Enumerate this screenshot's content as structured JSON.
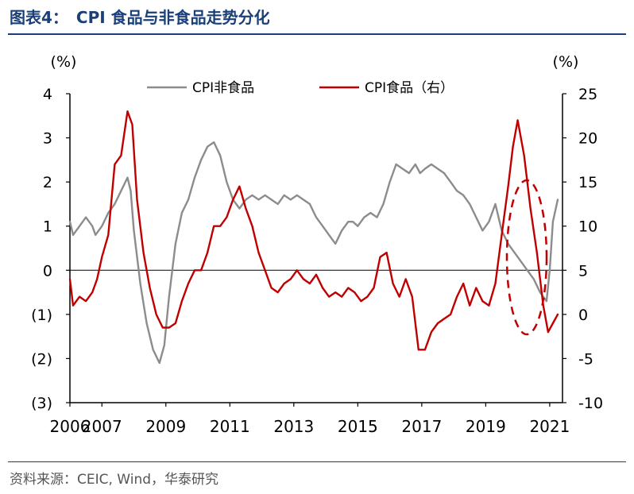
{
  "header": {
    "title": "图表4：　CPI 食品与非食品走势分化"
  },
  "source": {
    "text": "资料来源：CEIC, Wind，华泰研究"
  },
  "chart_data": {
    "type": "line",
    "title": "",
    "left_axis": {
      "unit_label": "(%)",
      "range": [
        -3,
        4
      ],
      "ticks": [
        4,
        3,
        2,
        1,
        0,
        -1,
        -2,
        -3
      ],
      "tick_labels": [
        "4",
        "3",
        "2",
        "1",
        "0",
        "(1)",
        "(2)",
        "(3)"
      ]
    },
    "right_axis": {
      "unit_label": "(%)",
      "range": [
        -10,
        25
      ],
      "ticks": [
        25,
        20,
        15,
        10,
        5,
        0,
        -5,
        -10
      ],
      "tick_labels": [
        "25",
        "20",
        "15",
        "10",
        "5",
        "0",
        "-5",
        "-10"
      ]
    },
    "x_axis": {
      "range": [
        2006.0,
        2021.4
      ],
      "ticks": [
        2006,
        2007,
        2009,
        2011,
        2013,
        2015,
        2017,
        2019,
        2021
      ],
      "tick_labels": [
        "2006",
        "2007",
        "2009",
        "2011",
        "2013",
        "2015",
        "2017",
        "2019",
        "2021"
      ]
    },
    "legend": {
      "placement": "top-center"
    },
    "series": [
      {
        "name": "CPI非食品",
        "axis": "left",
        "color": "#8c8c8c",
        "x": [
          2006.0,
          2006.1,
          2006.3,
          2006.5,
          2006.7,
          2006.8,
          2007.0,
          2007.2,
          2007.4,
          2007.6,
          2007.8,
          2007.9,
          2008.0,
          2008.2,
          2008.4,
          2008.6,
          2008.8,
          2008.95,
          2009.1,
          2009.3,
          2009.5,
          2009.7,
          2009.9,
          2010.1,
          2010.3,
          2010.5,
          2010.7,
          2010.9,
          2011.1,
          2011.3,
          2011.5,
          2011.7,
          2011.9,
          2012.1,
          2012.3,
          2012.5,
          2012.7,
          2012.9,
          2013.1,
          2013.3,
          2013.5,
          2013.7,
          2013.9,
          2014.1,
          2014.3,
          2014.5,
          2014.7,
          2014.85,
          2015.0,
          2015.2,
          2015.4,
          2015.6,
          2015.8,
          2016.0,
          2016.2,
          2016.4,
          2016.6,
          2016.8,
          2016.95,
          2017.1,
          2017.3,
          2017.5,
          2017.7,
          2017.9,
          2018.1,
          2018.3,
          2018.5,
          2018.7,
          2018.9,
          2019.1,
          2019.3,
          2019.5,
          2019.7,
          2019.9,
          2020.1,
          2020.3,
          2020.5,
          2020.7,
          2020.9,
          2021.0,
          2021.1,
          2021.25
        ],
        "y": [
          1.1,
          0.8,
          1.0,
          1.2,
          1.0,
          0.8,
          1.0,
          1.3,
          1.5,
          1.8,
          2.1,
          1.8,
          0.9,
          -0.3,
          -1.2,
          -1.8,
          -2.1,
          -1.7,
          -0.6,
          0.6,
          1.3,
          1.6,
          2.1,
          2.5,
          2.8,
          2.9,
          2.6,
          2.0,
          1.6,
          1.4,
          1.6,
          1.7,
          1.6,
          1.7,
          1.6,
          1.5,
          1.7,
          1.6,
          1.7,
          1.6,
          1.5,
          1.2,
          1.0,
          0.8,
          0.6,
          0.9,
          1.1,
          1.1,
          1.0,
          1.2,
          1.3,
          1.2,
          1.5,
          2.0,
          2.4,
          2.3,
          2.2,
          2.4,
          2.2,
          2.3,
          2.4,
          2.3,
          2.2,
          2.0,
          1.8,
          1.7,
          1.5,
          1.2,
          0.9,
          1.1,
          1.5,
          0.9,
          0.6,
          0.4,
          0.2,
          0.0,
          -0.2,
          -0.5,
          -0.7,
          0.0,
          1.1,
          1.6
        ]
      },
      {
        "name": "CPI食品（右）",
        "axis": "right",
        "color": "#c00000",
        "x": [
          2006.0,
          2006.1,
          2006.3,
          2006.5,
          2006.7,
          2006.85,
          2007.0,
          2007.2,
          2007.4,
          2007.6,
          2007.8,
          2007.95,
          2008.1,
          2008.3,
          2008.5,
          2008.7,
          2008.9,
          2009.1,
          2009.3,
          2009.5,
          2009.7,
          2009.9,
          2010.1,
          2010.3,
          2010.5,
          2010.7,
          2010.9,
          2011.1,
          2011.3,
          2011.5,
          2011.7,
          2011.9,
          2012.1,
          2012.3,
          2012.5,
          2012.7,
          2012.9,
          2013.1,
          2013.3,
          2013.5,
          2013.7,
          2013.9,
          2014.1,
          2014.3,
          2014.5,
          2014.7,
          2014.9,
          2015.1,
          2015.3,
          2015.5,
          2015.7,
          2015.9,
          2016.1,
          2016.3,
          2016.5,
          2016.7,
          2016.9,
          2017.1,
          2017.3,
          2017.5,
          2017.7,
          2017.9,
          2018.1,
          2018.3,
          2018.5,
          2018.7,
          2018.9,
          2019.1,
          2019.3,
          2019.5,
          2019.7,
          2019.85,
          2020.0,
          2020.2,
          2020.4,
          2020.6,
          2020.8,
          2020.95,
          2021.1,
          2021.25
        ],
        "y": [
          4.0,
          1.0,
          2.0,
          1.5,
          2.5,
          4.0,
          6.5,
          9.0,
          17.0,
          18.0,
          23.0,
          21.5,
          13.0,
          7.0,
          3.0,
          0.0,
          -1.5,
          -1.5,
          -1.0,
          1.5,
          3.5,
          5.0,
          5.0,
          7.0,
          10.0,
          10.0,
          11.0,
          13.0,
          14.5,
          12.0,
          10.0,
          7.0,
          5.0,
          3.0,
          2.5,
          3.5,
          4.0,
          5.0,
          4.0,
          3.5,
          4.5,
          3.0,
          2.0,
          2.5,
          2.0,
          3.0,
          2.5,
          1.5,
          2.0,
          3.0,
          6.5,
          7.0,
          3.5,
          2.0,
          4.0,
          2.0,
          -4.0,
          -4.0,
          -2.0,
          -1.0,
          -0.5,
          0.0,
          2.0,
          3.5,
          1.0,
          3.0,
          1.5,
          1.0,
          3.5,
          9.0,
          14.5,
          19.0,
          22.0,
          18.0,
          12.0,
          7.0,
          1.0,
          -2.0,
          -1.0,
          0.0
        ]
      }
    ]
  }
}
